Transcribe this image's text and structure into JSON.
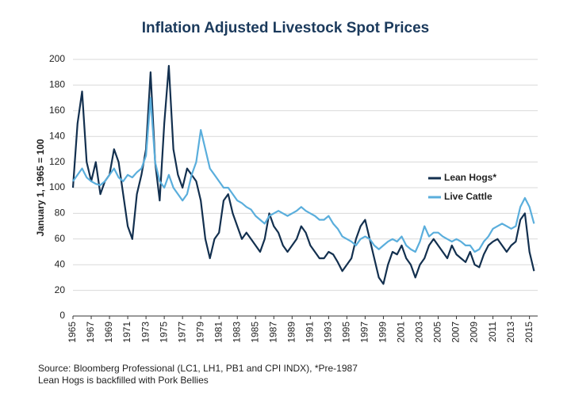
{
  "chart_data": {
    "type": "line",
    "title": "Inflation Adjusted Livestock Spot Prices",
    "y_label": "January 1, 1965 = 100",
    "source": "Source: Bloomberg Professional (LC1, LH1, PB1 and CPI INDX), *Pre-1987 Lean Hogs is backfilled with Pork Bellies",
    "legend": "right",
    "grid": true,
    "xlim": [
      1965,
      2015.9
    ],
    "ylim": [
      0,
      200
    ],
    "yticks": [
      0,
      20,
      40,
      60,
      80,
      100,
      120,
      140,
      160,
      180,
      200
    ],
    "xticks": [
      1965,
      1967,
      1969,
      1971,
      1973,
      1975,
      1977,
      1979,
      1981,
      1983,
      1985,
      1987,
      1989,
      1991,
      1993,
      1995,
      1997,
      1999,
      2001,
      2003,
      2005,
      2007,
      2009,
      2011,
      2013,
      2015
    ],
    "x": [
      1965,
      1965.5,
      1966,
      1966.5,
      1967,
      1967.5,
      1968,
      1968.5,
      1969,
      1969.5,
      1970,
      1970.5,
      1971,
      1971.5,
      1972,
      1972.5,
      1973,
      1973.5,
      1974,
      1974.5,
      1975,
      1975.5,
      1976,
      1976.5,
      1977,
      1977.5,
      1978,
      1978.5,
      1979,
      1979.5,
      1980,
      1980.5,
      1981,
      1981.5,
      1982,
      1982.5,
      1983,
      1983.5,
      1984,
      1984.5,
      1985,
      1985.5,
      1986,
      1986.5,
      1987,
      1987.5,
      1988,
      1988.5,
      1989,
      1989.5,
      1990,
      1990.5,
      1991,
      1991.5,
      1992,
      1992.5,
      1993,
      1993.5,
      1994,
      1994.5,
      1995,
      1995.5,
      1996,
      1996.5,
      1997,
      1997.5,
      1998,
      1998.5,
      1999,
      1999.5,
      2000,
      2000.5,
      2001,
      2001.5,
      2002,
      2002.5,
      2003,
      2003.5,
      2004,
      2004.5,
      2005,
      2005.5,
      2006,
      2006.5,
      2007,
      2007.5,
      2008,
      2008.5,
      2009,
      2009.5,
      2010,
      2010.5,
      2011,
      2011.5,
      2012,
      2012.5,
      2013,
      2013.5,
      2014,
      2014.5,
      2015,
      2015.5
    ],
    "series": [
      {
        "name": "Lean Hogs*",
        "color": "#13304f",
        "values": [
          100,
          150,
          175,
          120,
          105,
          120,
          95,
          105,
          110,
          130,
          120,
          95,
          70,
          60,
          95,
          110,
          130,
          190,
          120,
          90,
          150,
          195,
          130,
          110,
          100,
          115,
          110,
          105,
          90,
          60,
          45,
          60,
          65,
          90,
          95,
          80,
          70,
          60,
          65,
          60,
          55,
          50,
          60,
          80,
          70,
          65,
          55,
          50,
          55,
          60,
          70,
          65,
          55,
          50,
          45,
          45,
          50,
          48,
          42,
          35,
          40,
          45,
          60,
          70,
          75,
          60,
          45,
          30,
          25,
          40,
          50,
          48,
          55,
          45,
          40,
          30,
          40,
          45,
          55,
          60,
          55,
          50,
          45,
          55,
          48,
          45,
          42,
          50,
          40,
          38,
          48,
          55,
          58,
          60,
          55,
          50,
          55,
          58,
          75,
          80,
          50,
          35
        ]
      },
      {
        "name": "Live Cattle",
        "color": "#5aaedc",
        "values": [
          105,
          110,
          115,
          108,
          105,
          103,
          102,
          105,
          110,
          115,
          108,
          105,
          110,
          108,
          112,
          115,
          125,
          170,
          120,
          105,
          100,
          110,
          100,
          95,
          90,
          95,
          110,
          120,
          145,
          130,
          115,
          110,
          105,
          100,
          100,
          95,
          90,
          88,
          85,
          83,
          78,
          75,
          72,
          78,
          80,
          82,
          80,
          78,
          80,
          82,
          85,
          82,
          80,
          78,
          75,
          75,
          78,
          72,
          68,
          62,
          60,
          58,
          55,
          60,
          62,
          60,
          55,
          52,
          55,
          58,
          60,
          58,
          62,
          55,
          52,
          50,
          58,
          70,
          62,
          65,
          65,
          62,
          60,
          58,
          60,
          58,
          55,
          55,
          50,
          52,
          58,
          62,
          68,
          70,
          72,
          70,
          68,
          70,
          85,
          92,
          85,
          72
        ]
      }
    ]
  }
}
